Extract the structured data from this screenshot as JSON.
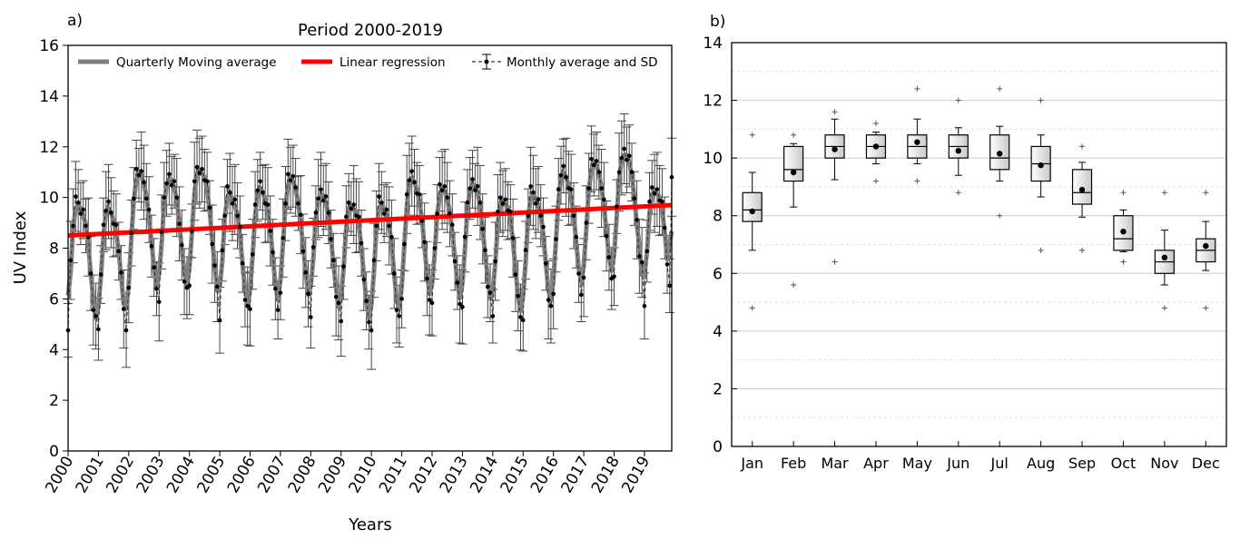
{
  "panel_a": {
    "label": "a)",
    "title": "Period 2000-2019",
    "legend": {
      "moving": "Quarterly Moving average",
      "regression": "Linear regression",
      "monthly": "Monthly average and SD"
    }
  },
  "panel_b": {
    "label": "b)"
  },
  "colors": {
    "moving_avg": "#808080",
    "regression": "#ff0000",
    "monthly": "#000000",
    "errorbar": "#444444",
    "box_fill_light": "#ffffff",
    "box_fill_dark": "#c8c8c8"
  },
  "chart_data": [
    {
      "type": "line",
      "title": "Period 2000-2019",
      "xlabel": "Years",
      "ylabel": "UV Index",
      "xlim": [
        2000,
        2019.9
      ],
      "ylim": [
        0,
        16
      ],
      "x_ticks": [
        "2000",
        "2001",
        "2002",
        "2003",
        "2004",
        "2005",
        "2006",
        "2007",
        "2008",
        "2009",
        "2010",
        "2011",
        "2012",
        "2013",
        "2014",
        "2015",
        "2016",
        "2017",
        "2018",
        "2019"
      ],
      "y_ticks": [
        0,
        2,
        4,
        6,
        8,
        10,
        12,
        14,
        16
      ],
      "grid": false,
      "legend_position": "top",
      "regression": {
        "x": [
          2000,
          2019.9
        ],
        "y": [
          8.5,
          9.7
        ]
      },
      "monthly_pattern": [
        5.6,
        8.0,
        9.6,
        10.4,
        10.4,
        10.2,
        10.0,
        9.6,
        8.8,
        7.6,
        6.4,
        5.8
      ],
      "year_offsets": [
        -0.6,
        -0.8,
        0.6,
        0.4,
        0.8,
        -0.2,
        0.0,
        0.4,
        -0.2,
        -0.6,
        -0.6,
        0.4,
        0.0,
        0.2,
        -0.4,
        -0.2,
        0.6,
        1.0,
        1.4,
        0.0
      ],
      "monthly_sd": 1.3,
      "last_point": {
        "x": 2019.9,
        "y": 10.8
      },
      "series": [
        {
          "name": "Quarterly Moving average"
        },
        {
          "name": "Linear regression"
        },
        {
          "name": "Monthly average and SD"
        }
      ]
    },
    {
      "type": "box",
      "categories": [
        "Jan",
        "Feb",
        "Mar",
        "Apr",
        "May",
        "Jun",
        "Jul",
        "Aug",
        "Sep",
        "Oct",
        "Nov",
        "Dec"
      ],
      "ylim": [
        0,
        14
      ],
      "y_ticks": [
        0,
        2,
        4,
        6,
        8,
        10,
        12,
        14
      ],
      "grid": true,
      "boxes": [
        {
          "q1": 7.8,
          "median": 8.2,
          "q3": 8.8,
          "whisker_low": 6.8,
          "whisker_high": 9.5,
          "mean": 8.15,
          "outliers": [
            4.8,
            10.8
          ]
        },
        {
          "q1": 9.2,
          "median": 9.6,
          "q3": 10.4,
          "whisker_low": 8.3,
          "whisker_high": 10.5,
          "mean": 9.5,
          "outliers": [
            5.6,
            10.8
          ]
        },
        {
          "q1": 10.0,
          "median": 10.4,
          "q3": 10.8,
          "whisker_low": 9.25,
          "whisker_high": 11.35,
          "mean": 10.3,
          "outliers": [
            6.4,
            11.6
          ]
        },
        {
          "q1": 10.0,
          "median": 10.4,
          "q3": 10.8,
          "whisker_low": 9.8,
          "whisker_high": 10.9,
          "mean": 10.4,
          "outliers": [
            9.2,
            11.2
          ]
        },
        {
          "q1": 10.0,
          "median": 10.4,
          "q3": 10.8,
          "whisker_low": 9.8,
          "whisker_high": 11.35,
          "mean": 10.55,
          "outliers": [
            9.2,
            12.4
          ]
        },
        {
          "q1": 10.0,
          "median": 10.4,
          "q3": 10.8,
          "whisker_low": 9.4,
          "whisker_high": 11.05,
          "mean": 10.25,
          "outliers": [
            8.8,
            12.0
          ]
        },
        {
          "q1": 9.6,
          "median": 10.0,
          "q3": 10.8,
          "whisker_low": 9.2,
          "whisker_high": 11.1,
          "mean": 10.15,
          "outliers": [
            8.0,
            12.4
          ]
        },
        {
          "q1": 9.2,
          "median": 9.8,
          "q3": 10.4,
          "whisker_low": 8.65,
          "whisker_high": 10.8,
          "mean": 9.75,
          "outliers": [
            6.8,
            12.0
          ]
        },
        {
          "q1": 8.4,
          "median": 8.8,
          "q3": 9.6,
          "whisker_low": 7.95,
          "whisker_high": 9.85,
          "mean": 8.9,
          "outliers": [
            6.8,
            10.4
          ]
        },
        {
          "q1": 6.8,
          "median": 7.2,
          "q3": 8.0,
          "whisker_low": 6.75,
          "whisker_high": 8.2,
          "mean": 7.45,
          "outliers": [
            6.4,
            8.8
          ]
        },
        {
          "q1": 6.0,
          "median": 6.4,
          "q3": 6.8,
          "whisker_low": 5.6,
          "whisker_high": 7.5,
          "mean": 6.55,
          "outliers": [
            4.8,
            8.8
          ]
        },
        {
          "q1": 6.4,
          "median": 6.8,
          "q3": 7.2,
          "whisker_low": 6.1,
          "whisker_high": 7.8,
          "mean": 6.95,
          "outliers": [
            4.8,
            8.8
          ]
        }
      ]
    }
  ]
}
